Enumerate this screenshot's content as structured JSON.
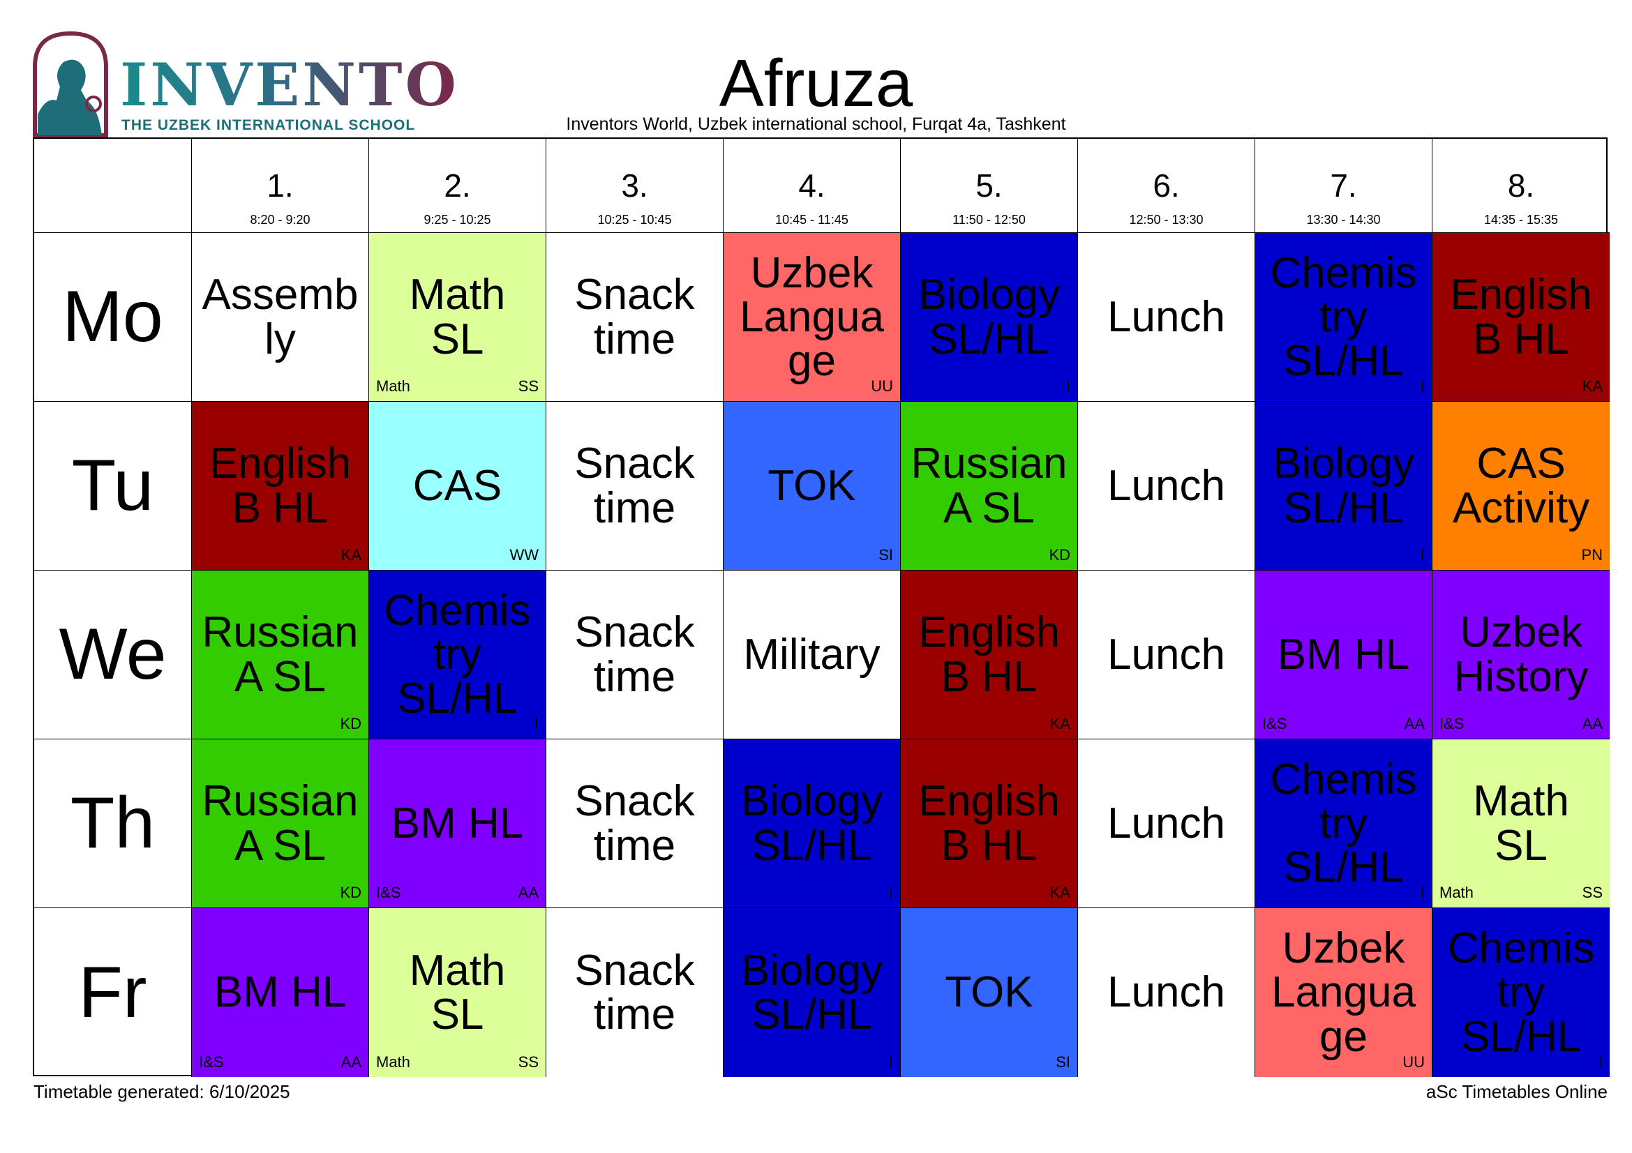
{
  "logo": {
    "name": "INVENTO",
    "subtitle": "THE UZBEK INTERNATIONAL SCHOOL"
  },
  "header": {
    "title": "Afruza",
    "subtitle": "Inventors World, Uzbek international school, Furqat 4a, Tashkent"
  },
  "periods": [
    {
      "num": "1.",
      "time": "8:20 - 9:20"
    },
    {
      "num": "2.",
      "time": "9:25 - 10:25"
    },
    {
      "num": "3.",
      "time": "10:25 - 10:45"
    },
    {
      "num": "4.",
      "time": "10:45 - 11:45"
    },
    {
      "num": "5.",
      "time": "11:50 - 12:50"
    },
    {
      "num": "6.",
      "time": "12:50 - 13:30"
    },
    {
      "num": "7.",
      "time": "13:30 - 14:30"
    },
    {
      "num": "8.",
      "time": "14:35 - 15:35"
    }
  ],
  "days": [
    {
      "name": "Mo",
      "lessons": [
        {
          "subject": "Assemb\nly",
          "color": "#ffffff",
          "group": "",
          "teacher": ""
        },
        {
          "subject": "Math\nSL",
          "color": "#ddff99",
          "group": "Math",
          "teacher": "SS"
        },
        {
          "subject": "Snack\ntime",
          "color": "#ffffff",
          "group": "",
          "teacher": ""
        },
        {
          "subject": "Uzbek\nLangua\nge",
          "color": "#ff6666",
          "group": "",
          "teacher": "UU"
        },
        {
          "subject": "Biology\nSL/HL",
          "color": "#0000cc",
          "group": "",
          "teacher": "I"
        },
        {
          "subject": "Lunch",
          "color": "#ffffff",
          "group": "",
          "teacher": ""
        },
        {
          "subject": "Chemis\ntry\nSL/HL",
          "color": "#0000cc",
          "group": "",
          "teacher": "I"
        },
        {
          "subject": "English\nB HL",
          "color": "#990000",
          "group": "",
          "teacher": "KA"
        }
      ]
    },
    {
      "name": "Tu",
      "lessons": [
        {
          "subject": "English\nB HL",
          "color": "#990000",
          "group": "",
          "teacher": "KA"
        },
        {
          "subject": "CAS",
          "color": "#99ffff",
          "group": "",
          "teacher": "WW"
        },
        {
          "subject": "Snack\ntime",
          "color": "#ffffff",
          "group": "",
          "teacher": ""
        },
        {
          "subject": "TOK",
          "color": "#3366ff",
          "group": "",
          "teacher": "SI"
        },
        {
          "subject": "Russian\nA SL",
          "color": "#33cc00",
          "group": "",
          "teacher": "KD"
        },
        {
          "subject": "Lunch",
          "color": "#ffffff",
          "group": "",
          "teacher": ""
        },
        {
          "subject": "Biology\nSL/HL",
          "color": "#0000cc",
          "group": "",
          "teacher": "I"
        },
        {
          "subject": "CAS\nActivity",
          "color": "#ff8000",
          "group": "",
          "teacher": "PN"
        }
      ]
    },
    {
      "name": "We",
      "lessons": [
        {
          "subject": "Russian\nA SL",
          "color": "#33cc00",
          "group": "",
          "teacher": "KD"
        },
        {
          "subject": "Chemis\ntry\nSL/HL",
          "color": "#0000cc",
          "group": "",
          "teacher": "I"
        },
        {
          "subject": "Snack\ntime",
          "color": "#ffffff",
          "group": "",
          "teacher": ""
        },
        {
          "subject": "Military",
          "color": "#ffffff",
          "group": "",
          "teacher": ""
        },
        {
          "subject": "English\nB HL",
          "color": "#990000",
          "group": "",
          "teacher": "KA"
        },
        {
          "subject": "Lunch",
          "color": "#ffffff",
          "group": "",
          "teacher": ""
        },
        {
          "subject": "BM HL",
          "color": "#8000ff",
          "group": "I&S",
          "teacher": "AA"
        },
        {
          "subject": "Uzbek\nHistory",
          "color": "#8000ff",
          "group": "I&S",
          "teacher": "AA"
        }
      ]
    },
    {
      "name": "Th",
      "lessons": [
        {
          "subject": "Russian\nA SL",
          "color": "#33cc00",
          "group": "",
          "teacher": "KD"
        },
        {
          "subject": "BM HL",
          "color": "#8000ff",
          "group": "I&S",
          "teacher": "AA"
        },
        {
          "subject": "Snack\ntime",
          "color": "#ffffff",
          "group": "",
          "teacher": ""
        },
        {
          "subject": "Biology\nSL/HL",
          "color": "#0000cc",
          "group": "",
          "teacher": "I"
        },
        {
          "subject": "English\nB HL",
          "color": "#990000",
          "group": "",
          "teacher": "KA"
        },
        {
          "subject": "Lunch",
          "color": "#ffffff",
          "group": "",
          "teacher": ""
        },
        {
          "subject": "Chemis\ntry\nSL/HL",
          "color": "#0000cc",
          "group": "",
          "teacher": "I"
        },
        {
          "subject": "Math\nSL",
          "color": "#ddff99",
          "group": "Math",
          "teacher": "SS"
        }
      ]
    },
    {
      "name": "Fr",
      "lessons": [
        {
          "subject": "BM HL",
          "color": "#8000ff",
          "group": "I&S",
          "teacher": "AA"
        },
        {
          "subject": "Math\nSL",
          "color": "#ddff99",
          "group": "Math",
          "teacher": "SS"
        },
        {
          "subject": "Snack\ntime",
          "color": "#ffffff",
          "group": "",
          "teacher": ""
        },
        {
          "subject": "Biology\nSL/HL",
          "color": "#0000cc",
          "group": "",
          "teacher": "I"
        },
        {
          "subject": "TOK",
          "color": "#3366ff",
          "group": "",
          "teacher": "SI"
        },
        {
          "subject": "Lunch",
          "color": "#ffffff",
          "group": "",
          "teacher": ""
        },
        {
          "subject": "Uzbek\nLangua\nge",
          "color": "#ff6666",
          "group": "",
          "teacher": "UU"
        },
        {
          "subject": "Chemis\ntry\nSL/HL",
          "color": "#0000cc",
          "group": "",
          "teacher": "I"
        }
      ]
    }
  ],
  "footer": {
    "generated": "Timetable generated: 6/10/2025",
    "brand": "aSc Timetables Online"
  }
}
